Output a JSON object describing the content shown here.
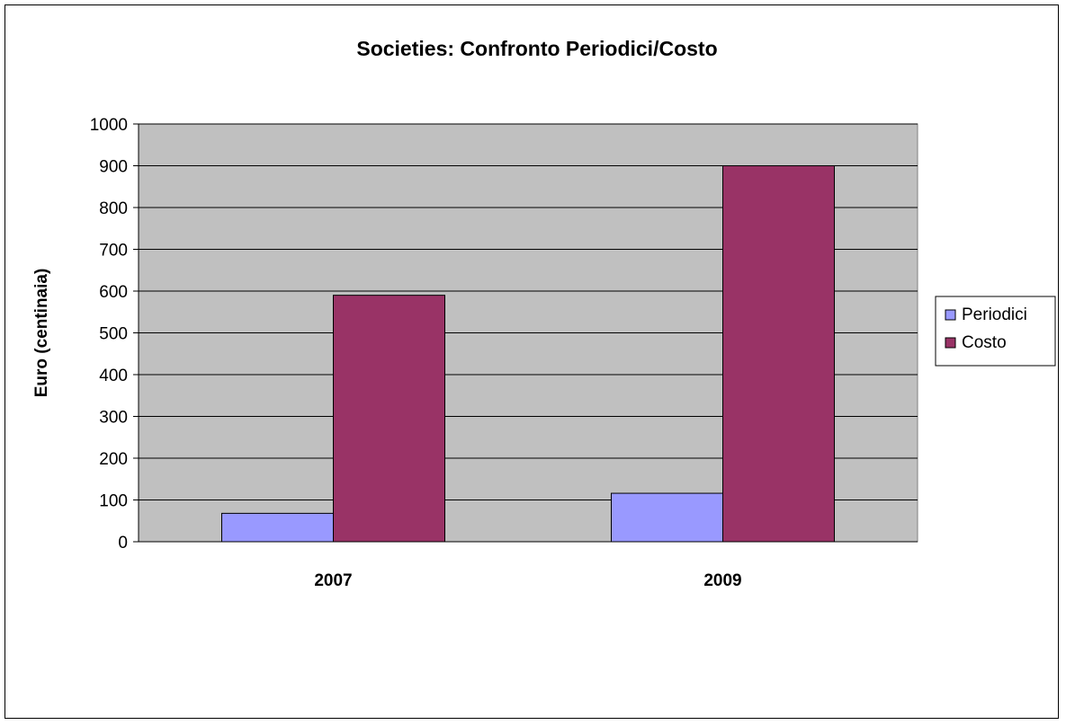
{
  "chart_data": {
    "type": "bar",
    "title": "Societies: Confronto Periodici/Costo",
    "xlabel": "",
    "ylabel": "Euro (centinaia)",
    "categories": [
      "2007",
      "2009"
    ],
    "series": [
      {
        "name": "Periodici",
        "values": [
          68,
          116
        ],
        "color": "#9999ff"
      },
      {
        "name": "Costo",
        "values": [
          590,
          900
        ],
        "color": "#993366"
      }
    ],
    "ylim": [
      0,
      1000
    ],
    "yticks": [
      "0",
      "100",
      "200",
      "300",
      "400",
      "500",
      "600",
      "700",
      "800",
      "900",
      "1000"
    ],
    "grid": true,
    "legend_position": "right",
    "plot_background": "#c0c0c0"
  }
}
